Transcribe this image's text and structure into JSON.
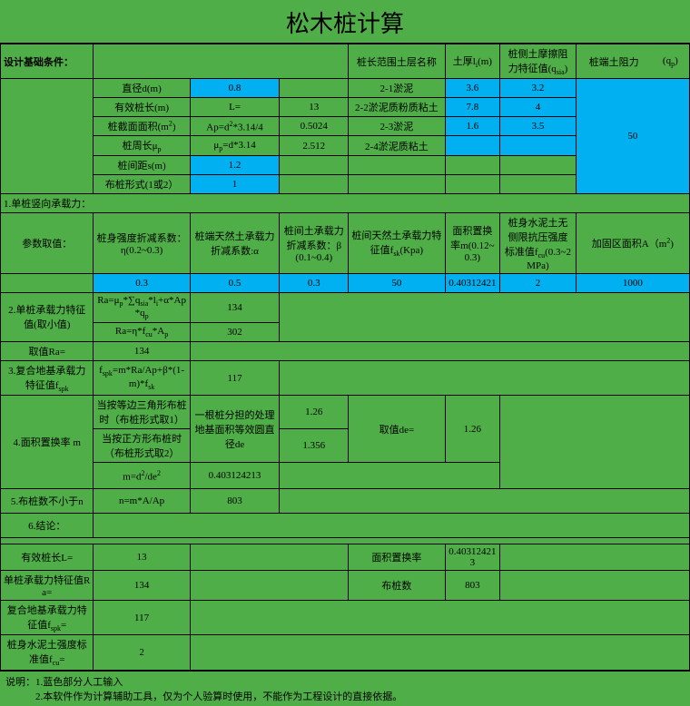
{
  "title": "松木桩计算",
  "headers": {
    "design_cond": "设计基础条件：",
    "soil_name": "桩长范围土层名称",
    "soil_thick": "土厚l<sub>i</sub>(m)",
    "side_friction": "桩侧土摩擦阻力特征值(q<sub>sia</sub>)",
    "tip_resist_label": "桩端土阻力",
    "tip_resist_sym": "(q<sub>p</sub>)"
  },
  "basic": {
    "diameter_label": "直径d(m)",
    "diameter_val": "0.8",
    "efflen_label": "有效桩长(m)",
    "efflen_sym": "L=",
    "efflen_val": "13",
    "area_label": "桩截面面积(m<sup>2</sup>)",
    "area_sym": "Ap=d<sup>2</sup>*3.14/4",
    "area_val": "0.5024",
    "perim_label": "桩周长μ<sub>p</sub>",
    "perim_sym": "μ<sub>p</sub>=d*3.14",
    "perim_val": "2.512",
    "spacing_label": "桩间距s(m)",
    "spacing_val": "1.2",
    "layout_label": "布桩形式(1或2）",
    "layout_val": "1"
  },
  "soils": [
    {
      "name": "2-1淤泥",
      "thick": "3.6",
      "qsia": "3.2"
    },
    {
      "name": "2-2淤泥质粉质粘土",
      "thick": "7.8",
      "qsia": "4"
    },
    {
      "name": "2-3淤泥",
      "thick": "1.6",
      "qsia": "3.5"
    },
    {
      "name": "2-4淤泥质粘土",
      "thick": "",
      "qsia": ""
    }
  ],
  "qp_val": "50",
  "sec1": {
    "title": "1.单桩竖向承载力：",
    "params_label": "参数取值：",
    "p1": "桩身强度折减系数：η(0.2~0.3)",
    "p2": "桩端天然土承载力折减系数:α",
    "p3": "桩间土承载力折减系数：β(0.1~0.4)",
    "p4": "桩间天然土承载力特征值f<sub>sk</sub>(Kpa)",
    "p5": "面积置换率m(0.12~0.3)",
    "p6": "桩身水泥土无侧限抗压强度标准值f<sub>cu</sub>(0.3~2MPa)",
    "p7": "加固区面积A（m<sup>2</sup>)",
    "v1": "0.3",
    "v2": "0.5",
    "v3": "0.3",
    "v4": "50",
    "v5": "0.40312421",
    "v6": "2",
    "v7": "1000"
  },
  "sec2": {
    "title": "2.单桩承载力特征值(取小值)",
    "f1": "Ra=μ<sub>p</sub>*∑q<sub>sia</sub>*l<sub>i</sub>+α*Ap*q<sub>p</sub>",
    "r1": "134",
    "f2": "Ra=η*f<sub>cu</sub>*A<sub>p</sub>",
    "r2": "302",
    "take_label": "取值Ra=",
    "take_val": "134"
  },
  "sec3": {
    "title": "3.复合地基承载力特征值f<sub>spk</sub>",
    "f": "f<sub>spk</sub>=m*Ra/Ap+β*(1-m)*f<sub>sk</sub>",
    "v": "117"
  },
  "sec4": {
    "title": "4.面积置换率  m",
    "c1": "当按等边三角形布桩时（布桩形式取1）",
    "c2": "当按正方形布桩时（布桩形式取2）",
    "mid": "一根桩分担的处理地基面积等效圆直径de",
    "r1": "1.26",
    "r2": "1.356",
    "take_label": "取值de=",
    "take_val": "1.26",
    "mf": "m=d<sup>2</sup>/de<sup>2</sup>",
    "mv": "0.403124213"
  },
  "sec5": {
    "title": "5.布桩数不小于n",
    "f": "n=m*A/Ap",
    "v": "803"
  },
  "sec6": {
    "title": "6.结论："
  },
  "conc": {
    "r1a": "有效桩长L=",
    "r1b": "13",
    "r1c": "面积置换率",
    "r1d": "0.403124213",
    "r2a": "单桩承载力特征值Ra=",
    "r2b": "134",
    "r2c": "布桩数",
    "r2d": "803",
    "r3a": "复合地基承载力特征值f<sub>spk</sub>=",
    "r3b": "117",
    "r4a": "桩身水泥土强度标准值f<sub>cu</sub>=",
    "r4b": "2"
  },
  "notes": {
    "n1": "说明：1.蓝色部分人工输入",
    "n2": "　　　2.本软件作为计算辅助工具，仅为个人验算时使用，不能作为工程设计的直接依据。"
  },
  "colors": {
    "bg": "#4fae47",
    "blue": "#00b0f0"
  }
}
